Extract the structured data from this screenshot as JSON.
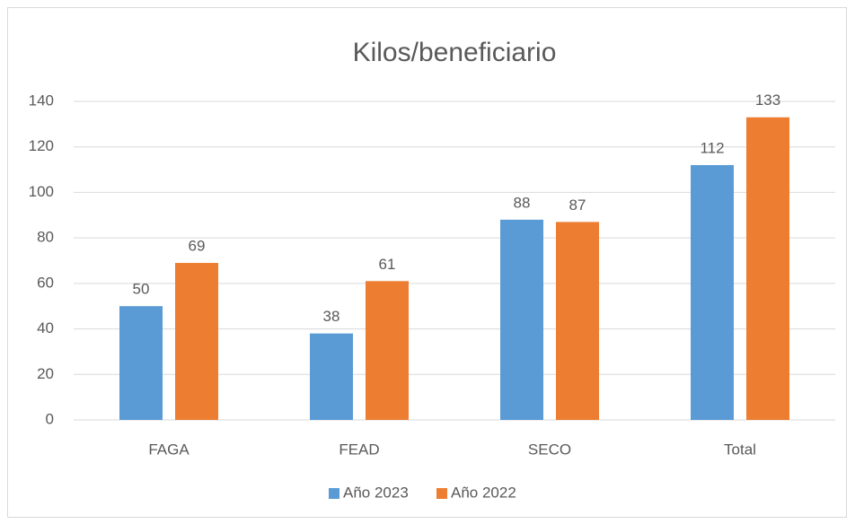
{
  "chart_data": {
    "type": "bar",
    "title": "Kilos/beneficiario",
    "categories": [
      "FAGA",
      "FEAD",
      "SECO",
      "Total"
    ],
    "series": [
      {
        "name": "Año 2023",
        "color": "#5b9bd5",
        "values": [
          50,
          38,
          88,
          112
        ]
      },
      {
        "name": "Año 2022",
        "color": "#ed7d31",
        "values": [
          69,
          61,
          87,
          133
        ]
      }
    ],
    "ylim": [
      0,
      140
    ],
    "yticks": [
      0,
      20,
      40,
      60,
      80,
      100,
      120,
      140
    ],
    "grid": true,
    "legend": "bottom"
  }
}
